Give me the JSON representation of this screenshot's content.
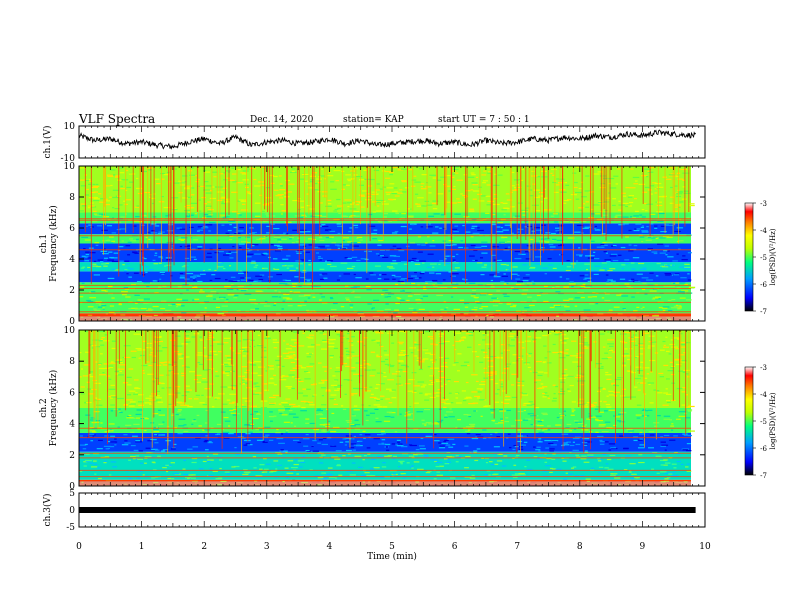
{
  "header": {
    "title": "VLF  Spectra",
    "date": "Dec. 14, 2020",
    "station": "station= KAP",
    "start_ut": "start  UT =   7 : 50 : 1"
  },
  "colors": {
    "spectrogram_scale": [
      "#000000",
      "#0000ff",
      "#00a0ff",
      "#00ff80",
      "#c0ff00",
      "#ffff00",
      "#ff8000",
      "#ff0000",
      "#ffffff"
    ],
    "waveform": "#000000"
  },
  "chart_data": [
    {
      "type": "line",
      "panel": "ch1-waveform",
      "ylabel": "ch.1(V)",
      "ylim": [
        -10,
        10
      ],
      "yticks": [
        "10",
        "-10"
      ],
      "xlim": [
        0,
        10
      ],
      "x": [
        0,
        0.25,
        0.5,
        0.75,
        1,
        1.25,
        1.5,
        1.75,
        2,
        2.25,
        2.5,
        2.75,
        3,
        3.25,
        3.5,
        3.75,
        4,
        4.25,
        4.5,
        4.75,
        5,
        5.25,
        5.5,
        5.75,
        6,
        6.25,
        6.5,
        6.75,
        7,
        7.25,
        7.5,
        7.75,
        8,
        8.25,
        8.5,
        8.75,
        9,
        9.25,
        9.5,
        9.85
      ],
      "values": [
        4,
        1,
        2,
        -1,
        0,
        -2,
        -3,
        0,
        2,
        -1,
        3,
        -2,
        0,
        1,
        -1,
        0,
        2,
        -1,
        1,
        -2,
        -1,
        0,
        1,
        -1,
        0,
        -2,
        1,
        -1,
        0,
        2,
        1,
        3,
        2,
        4,
        3,
        5,
        4,
        6,
        5,
        4
      ]
    },
    {
      "type": "heatmap",
      "panel": "ch1-spectrogram",
      "ylabel": "ch.1\nFrequency (kHz)",
      "ylim": [
        0,
        10
      ],
      "yticks": [
        "0",
        "2",
        "4",
        "6",
        "8",
        "10"
      ],
      "xlim": [
        0,
        10
      ],
      "colorbar": {
        "label": "log(PSD)(V²/Hz)",
        "range": [
          -7,
          -3
        ],
        "ticks": [
          "-3",
          "-4",
          "-5",
          "-6",
          "-7"
        ]
      },
      "bands": [
        {
          "f_low": 0,
          "f_high": 0.5,
          "level": "red-orange lines"
        },
        {
          "f_low": 0.5,
          "f_high": 2.5,
          "level": "green"
        },
        {
          "f_low": 2.5,
          "f_high": 3.2,
          "level": "blue"
        },
        {
          "f_low": 3.2,
          "f_high": 3.8,
          "level": "cyan-green"
        },
        {
          "f_low": 3.8,
          "f_high": 5.0,
          "level": "blue"
        },
        {
          "f_low": 5.0,
          "f_high": 5.6,
          "level": "green"
        },
        {
          "f_low": 5.6,
          "f_high": 6.3,
          "level": "blue"
        },
        {
          "f_low": 6.3,
          "f_high": 7.0,
          "level": "green"
        },
        {
          "f_low": 7.0,
          "f_high": 10.0,
          "level": "green-yellow with red streaks"
        }
      ]
    },
    {
      "type": "heatmap",
      "panel": "ch2-spectrogram",
      "ylabel": "ch.2\nFrequency (kHz)",
      "ylim": [
        0,
        10
      ],
      "yticks": [
        "0",
        "2",
        "4",
        "6",
        "8",
        "10"
      ],
      "xlim": [
        0,
        10
      ],
      "colorbar": {
        "label": "log(PSD)(V²/Hz)",
        "range": [
          -7,
          -3
        ],
        "ticks": [
          "-3",
          "-4",
          "-5",
          "-6",
          "-7"
        ]
      },
      "bands": [
        {
          "f_low": 0,
          "f_high": 0.4,
          "level": "red-orange lines"
        },
        {
          "f_low": 0.4,
          "f_high": 2.2,
          "level": "cyan-green"
        },
        {
          "f_low": 2.2,
          "f_high": 3.4,
          "level": "blue"
        },
        {
          "f_low": 3.4,
          "f_high": 5.0,
          "level": "green"
        },
        {
          "f_low": 5.0,
          "f_high": 10.0,
          "level": "green-yellow with red streaks"
        }
      ]
    },
    {
      "type": "line",
      "panel": "ch3-waveform",
      "ylabel": "ch.3(V)",
      "ylim": [
        -5,
        5
      ],
      "yticks": [
        "5",
        "0",
        "-5"
      ],
      "xlim": [
        0,
        10
      ],
      "x": [
        0,
        9.85
      ],
      "values": [
        0,
        0
      ]
    }
  ],
  "xaxis": {
    "label": "Time  (min)",
    "ticks": [
      "0",
      "1",
      "2",
      "3",
      "4",
      "5",
      "6",
      "7",
      "8",
      "9",
      "10"
    ]
  }
}
